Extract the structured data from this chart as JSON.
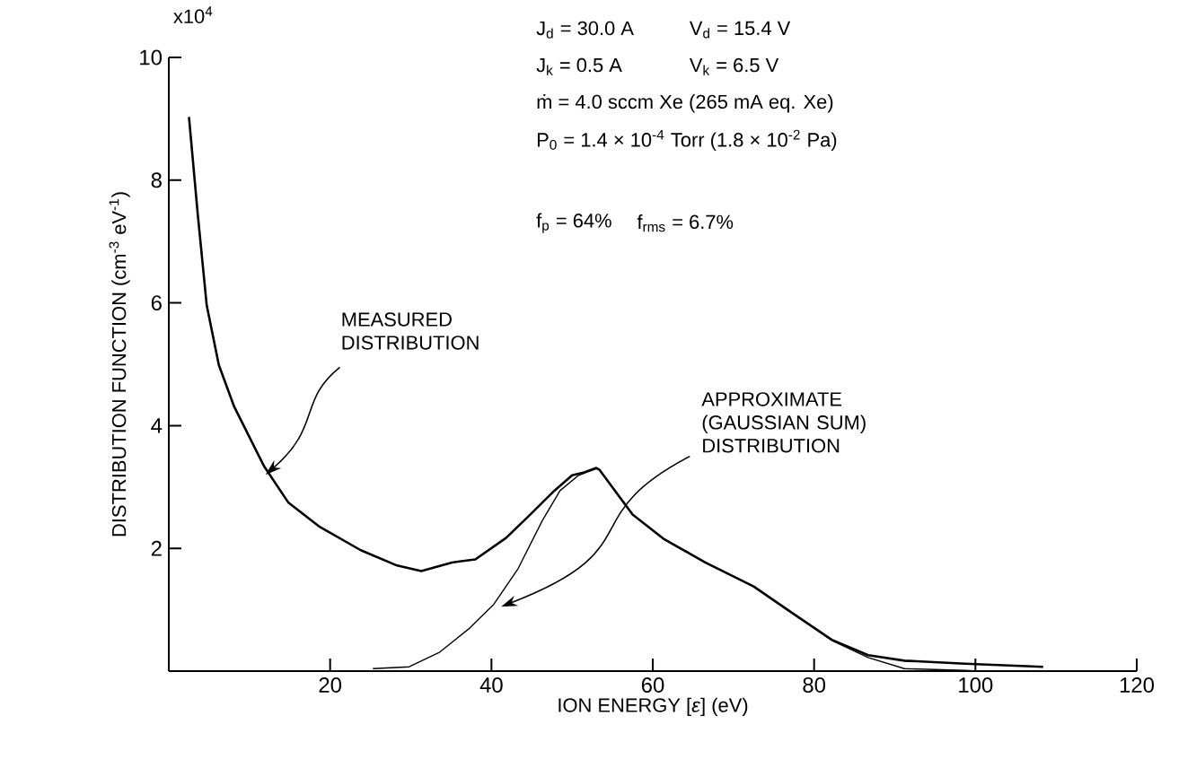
{
  "chart_data": {
    "type": "line",
    "xlabel": "ION ENERGY [*ε*] (eV)",
    "ylabel": "DISTRIBUTION FUNCTION (cm$^{-3}$ eV$^{-1}$)",
    "xlim": [
      0,
      120
    ],
    "xticks": [
      20,
      40,
      60,
      80,
      100,
      120
    ],
    "ylim": [
      0,
      10
    ],
    "yticks": [
      2,
      4,
      6,
      8,
      10
    ],
    "grid": false,
    "legend": false,
    "marker": "none",
    "line_style": "solid",
    "annotations": [
      "x10$^{4}$",
      "J$_{d}$ = 30.0 A",
      "V$_{d}$ = 15.4 V",
      "J$_{k}$ = 0.5 A",
      "V$_{k}$ = 6.5 V",
      "ṁ = 4.0 sccm Xe (265 mA eq. Xe)",
      "P$_{0}$ = 1.4 × 10$^{-4}$ Torr (1.8 × 10$^{-2}$ Pa)",
      "f$_{p}$ = 64%",
      "f$_{rms}$ = 6.7%",
      {
        "text": "MEASURED DISTRIBUTION",
        "x": 12.0,
        "y": 3.2
      },
      {
        "text": "APPROXIMATE (GAUSSIAN SUM) DISTRIBUTION",
        "x": 41.2,
        "y": 1.05
      }
    ],
    "series": [
      {
        "color": "#000000",
        "x": [
          2.5,
          3.6,
          4.7,
          6.2,
          8.1,
          11.8,
          14.8,
          18.6,
          23.8,
          28.3,
          31.3,
          35.1,
          38.0,
          41.8,
          44.8,
          47.8,
          50.0,
          51.5,
          53.0,
          53.4,
          57.5,
          61.3,
          66.5,
          72.5,
          77.8,
          82.2,
          86.7,
          91.2,
          98.7,
          108.4
        ],
        "values": [
          9.03,
          7.43,
          5.96,
          4.99,
          4.31,
          3.34,
          2.75,
          2.36,
          1.97,
          1.72,
          1.63,
          1.77,
          1.82,
          2.17,
          2.55,
          2.94,
          3.19,
          3.24,
          3.31,
          3.28,
          2.55,
          2.16,
          1.77,
          1.38,
          0.9,
          0.51,
          0.26,
          0.17,
          0.12,
          0.07
        ]
      },
      {
        "color": "#000000",
        "x": [
          25.3,
          29.8,
          33.6,
          37.3,
          40.3,
          43.3,
          46.3,
          48.5,
          50.8,
          53.0,
          53.4,
          57.5,
          61.3,
          66.5,
          72.5,
          77.8,
          82.2,
          86.7,
          91.2,
          98.7,
          100.5
        ],
        "values": [
          0.04,
          0.07,
          0.31,
          0.7,
          1.09,
          1.67,
          2.45,
          2.94,
          3.19,
          3.3,
          3.28,
          2.55,
          2.16,
          1.77,
          1.38,
          0.9,
          0.5,
          0.22,
          0.04,
          0.01,
          0.0
        ]
      }
    ]
  }
}
